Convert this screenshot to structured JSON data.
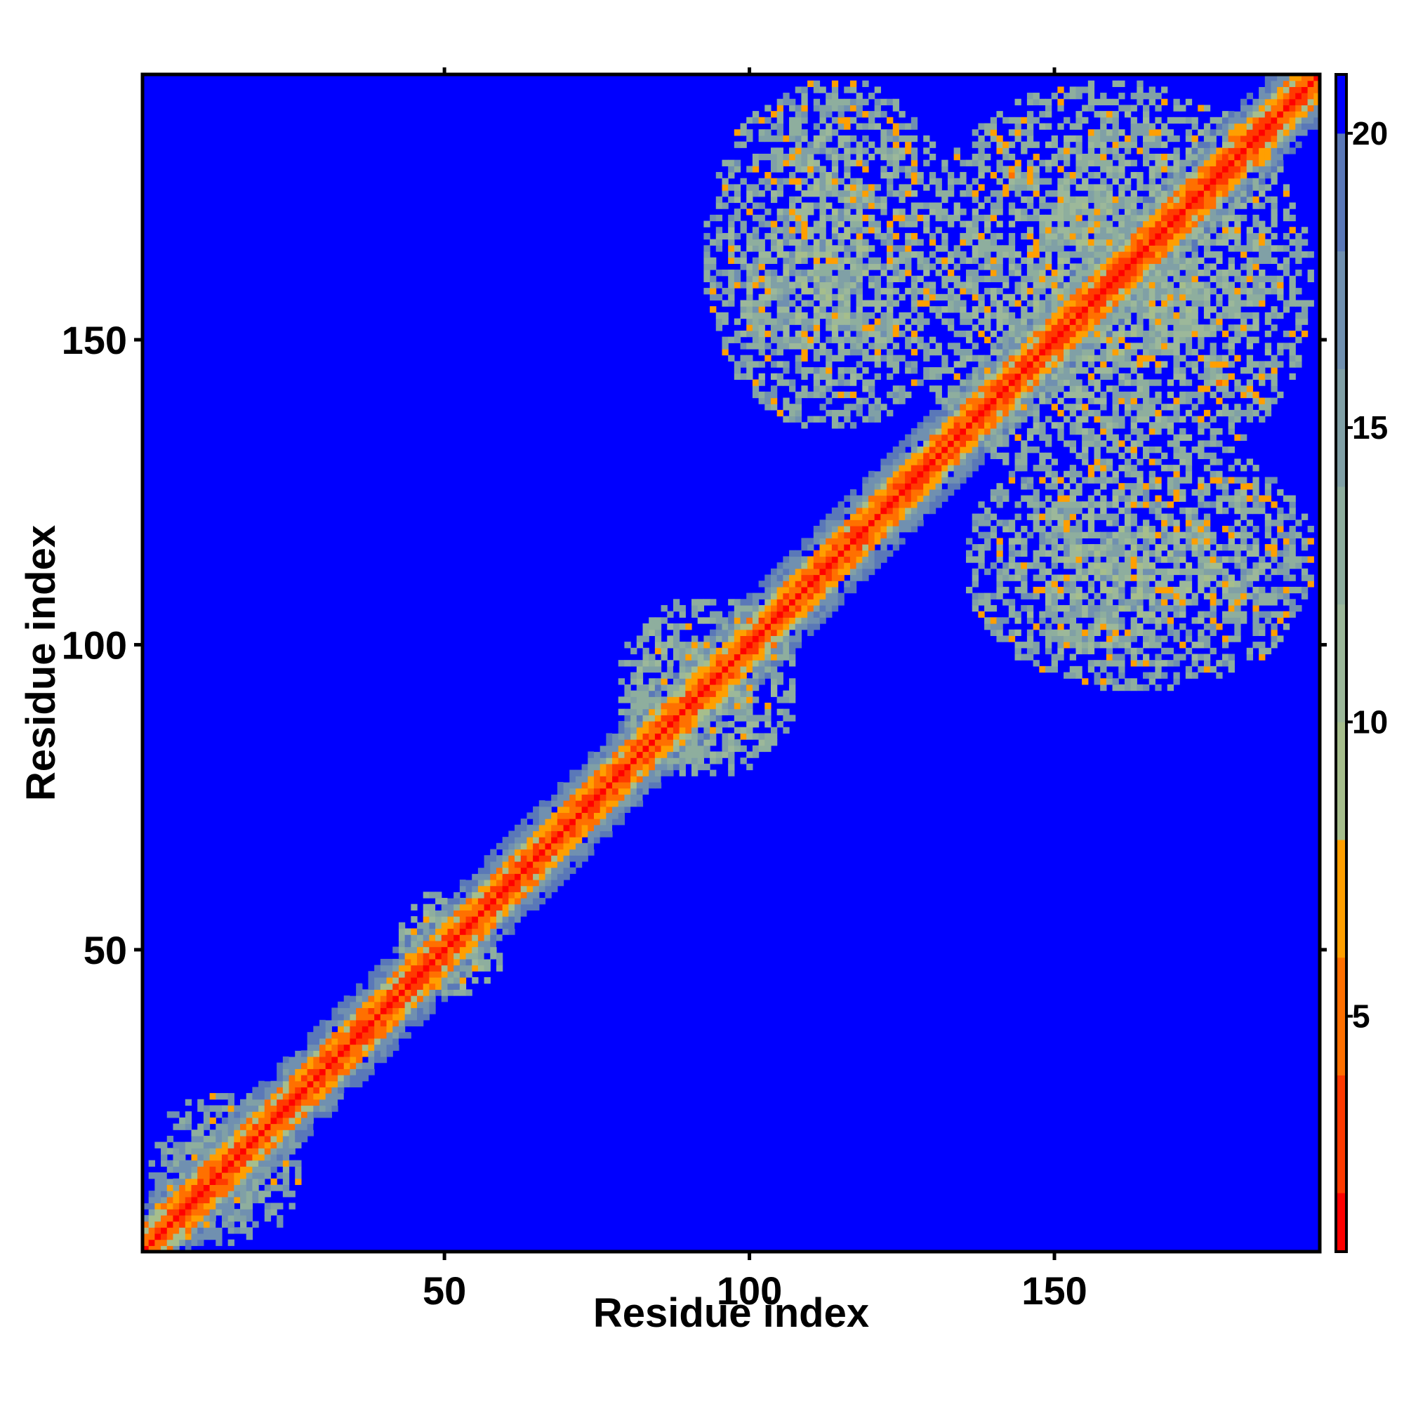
{
  "chart_data": {
    "type": "heatmap",
    "title": "",
    "xlabel": "Residue index",
    "ylabel": "Residue index",
    "n_residues": 193,
    "xlim": [
      1,
      193
    ],
    "ylim": [
      1,
      193
    ],
    "x_ticks": [
      50,
      100,
      150
    ],
    "x_tick_labels": [
      "50",
      "100",
      "150"
    ],
    "y_ticks": [
      50,
      100,
      150
    ],
    "y_tick_labels": [
      "50",
      "100",
      "150"
    ],
    "colorbar": {
      "range": [
        1,
        21
      ],
      "ticks": [
        5,
        10,
        15,
        20
      ],
      "tick_labels": [
        "5",
        "10",
        "15",
        "20"
      ],
      "levels": [
        {
          "max": 2,
          "color": "#ff0000"
        },
        {
          "max": 4,
          "color": "#ff3a00"
        },
        {
          "max": 6,
          "color": "#ff7000"
        },
        {
          "max": 8,
          "color": "#ff9f00"
        },
        {
          "max": 10,
          "color": "#a6be8c"
        },
        {
          "max": 12,
          "color": "#9cb89a"
        },
        {
          "max": 14,
          "color": "#8eae9e"
        },
        {
          "max": 16,
          "color": "#80a0a6"
        },
        {
          "max": 18,
          "color": "#7090b0"
        },
        {
          "max": 20,
          "color": "#5a78b8"
        },
        {
          "max": 21,
          "color": "#0000ff"
        }
      ]
    },
    "background_value": 21,
    "background_color": "#0000ff",
    "diagonal_value": 1,
    "contact_regions": [
      {
        "x": [
          1,
          27
        ],
        "y": [
          1,
          27
        ],
        "mean": 14,
        "spread": 4
      },
      {
        "x": [
          42,
          60
        ],
        "y": [
          42,
          60
        ],
        "mean": 12,
        "spread": 4
      },
      {
        "x": [
          78,
          108
        ],
        "y": [
          78,
          108
        ],
        "mean": 12,
        "spread": 4
      },
      {
        "x": [
          92,
          135
        ],
        "y": [
          135,
          193
        ],
        "mean": 12,
        "spread": 5
      },
      {
        "x": [
          135,
          193
        ],
        "y": [
          92,
          135
        ],
        "mean": 12,
        "spread": 5
      },
      {
        "x": [
          125,
          193
        ],
        "y": [
          125,
          193
        ],
        "mean": 12,
        "spread": 4
      }
    ],
    "band_half_width": 8,
    "grid": false,
    "legend": "colorbar-right"
  }
}
